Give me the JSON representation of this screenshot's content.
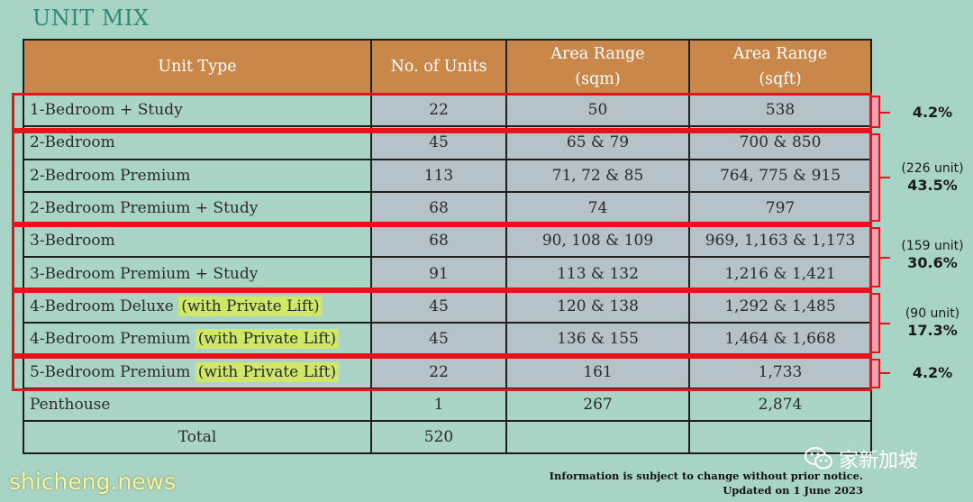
{
  "title": "UNIT MIX",
  "headers": {
    "unit_type": "Unit Type",
    "units": "No. of Units",
    "sqm_1": "Area Range",
    "sqm_2": "(sqm)",
    "sqft_1": "Area Range",
    "sqft_2": "(sqft)"
  },
  "rows": [
    {
      "type": "1-Bedroom + Study",
      "lift": "",
      "units": "22",
      "sqm": "50",
      "sqft": "538"
    },
    {
      "type": "2-Bedroom",
      "lift": "",
      "units": "45",
      "sqm": "65 & 79",
      "sqft": "700 & 850"
    },
    {
      "type": "2-Bedroom Premium",
      "lift": "",
      "units": "113",
      "sqm": "71, 72 & 85",
      "sqft": "764, 775 & 915"
    },
    {
      "type": "2-Bedroom Premium + Study",
      "lift": "",
      "units": "68",
      "sqm": "74",
      "sqft": "797"
    },
    {
      "type": "3-Bedroom",
      "lift": "",
      "units": "68",
      "sqm": "90, 108 & 109",
      "sqft": "969, 1,163 & 1,173"
    },
    {
      "type": "3-Bedroom Premium + Study",
      "lift": "",
      "units": "91",
      "sqm": "113 & 132",
      "sqft": "1,216 & 1,421"
    },
    {
      "type": "4-Bedroom Deluxe ",
      "lift": "(with Private Lift)",
      "units": "45",
      "sqm": "120 & 138",
      "sqft": "1,292 & 1,485"
    },
    {
      "type": "4-Bedroom Premium ",
      "lift": "(with Private Lift)",
      "units": "45",
      "sqm": "136 & 155",
      "sqft": "1,464 & 1,668"
    },
    {
      "type": "5-Bedroom Premium ",
      "lift": "(with Private Lift)",
      "units": "22",
      "sqm": "161",
      "sqft": "1,733"
    },
    {
      "type": "Penthouse",
      "lift": "",
      "units": "1",
      "sqm": "267",
      "sqft": "2,874"
    }
  ],
  "total": {
    "label": "Total",
    "units": "520",
    "sqm": "",
    "sqft": ""
  },
  "groups": [
    {
      "count": "",
      "percent": "4.2%"
    },
    {
      "count": "(226 unit)",
      "percent": "43.5%"
    },
    {
      "count": "(159 unit)",
      "percent": "30.6%"
    },
    {
      "count": "(90 unit)",
      "percent": "17.3%"
    },
    {
      "count": "",
      "percent": "4.2%"
    }
  ],
  "notice": {
    "line1": "Information is subject to change without prior notice.",
    "line2": "Updated on 1 June 2023"
  },
  "watermark_left": "shicheng.news",
  "watermark_right": "家新加坡",
  "colors": {
    "background": "#a8d4c6",
    "header": "#c9874a",
    "group_border": "#e8121b",
    "highlight": "#cfe86a"
  }
}
